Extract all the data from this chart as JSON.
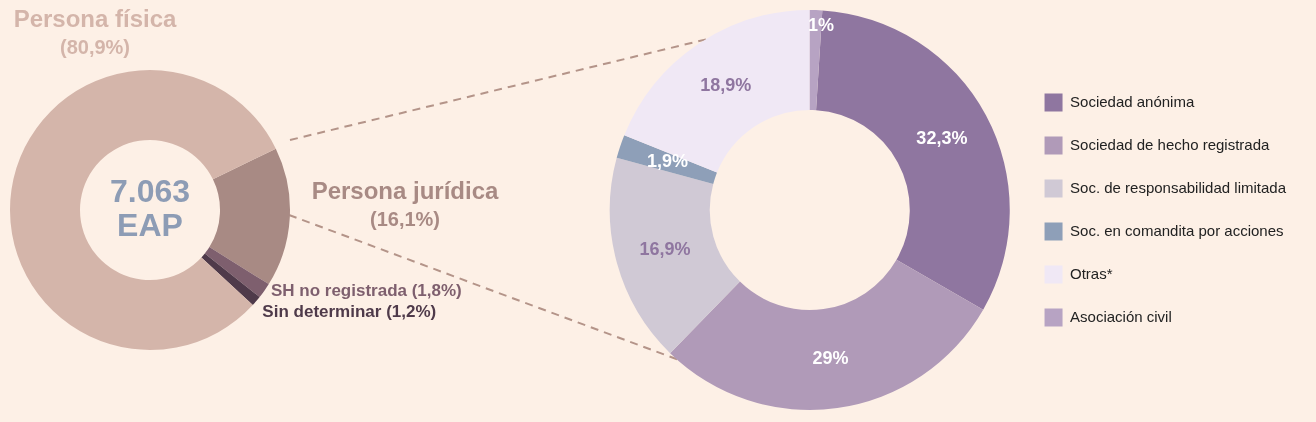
{
  "chart_data": [
    {
      "type": "donut",
      "categories": [
        "Persona jurídica",
        "SH no registrada",
        "Sin determinar",
        "Persona física"
      ],
      "values": [
        16.1,
        1.8,
        1.2,
        80.9
      ],
      "colors": [
        "#a88a84",
        "#7e5f6e",
        "#4f3a4a",
        "#d4b5aa"
      ],
      "value_labels": [
        "(16,1%)",
        "(1,8%)",
        "(1,2%)",
        "(80,9%)"
      ],
      "annotations": [
        "7.063 EAP"
      ]
    },
    {
      "type": "donut",
      "categories": [
        "Sociedad anónima",
        "Sociedad de hecho registrada",
        "Soc. de responsabilidad limitada",
        "Soc. en comandita por acciones",
        "Otras*",
        "Asociación civil"
      ],
      "values": [
        32.3,
        29,
        16.9,
        1.9,
        18.9,
        1
      ],
      "colors": [
        "#8f76a0",
        "#b09ab8",
        "#d0c9d5",
        "#8e9fb8",
        "#f0e8f5",
        "#b7a3c3"
      ],
      "value_labels": [
        "32,3%",
        "29%",
        "16,9%",
        "1,9%",
        "18,9%",
        "1%"
      ],
      "legend": "right"
    }
  ]
}
